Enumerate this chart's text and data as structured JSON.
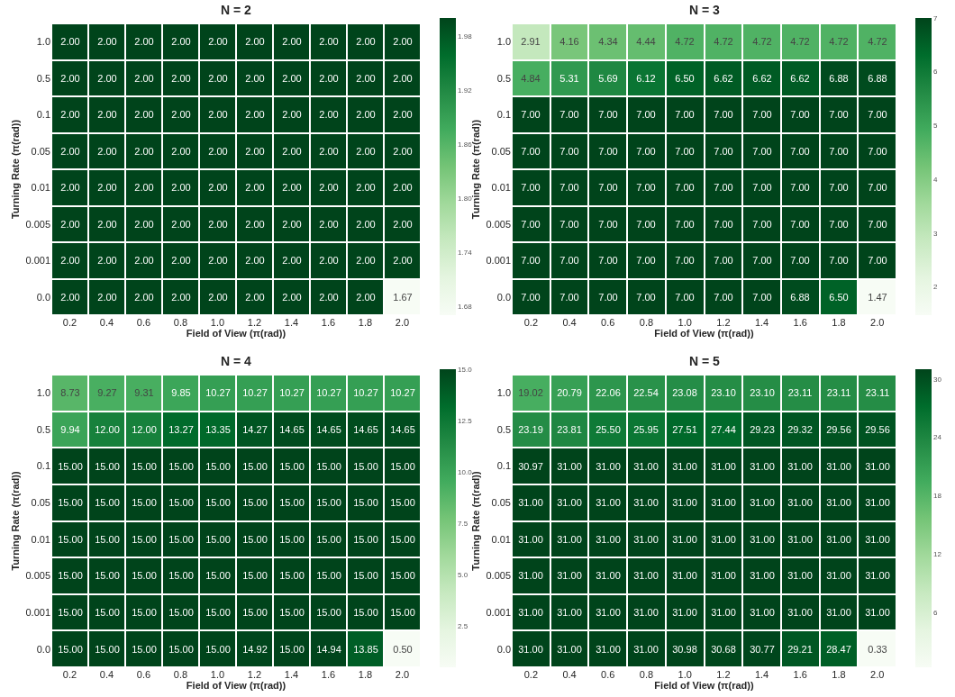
{
  "chart_data": [
    {
      "type": "heatmap",
      "title": "N = 2",
      "xlabel": "Field of View (π(rad))",
      "ylabel": "Turning Rate (π(rad))",
      "categories": [
        "0.2",
        "0.4",
        "0.6",
        "0.8",
        "1.0",
        "1.2",
        "1.4",
        "1.6",
        "1.8",
        "2.0"
      ],
      "y_categories": [
        "1.0",
        "0.5",
        "0.1",
        "0.05",
        "0.01",
        "0.005",
        "0.001",
        "0.0"
      ],
      "cells": [
        [
          2.0,
          2.0,
          2.0,
          2.0,
          2.0,
          2.0,
          2.0,
          2.0,
          2.0,
          2.0
        ],
        [
          2.0,
          2.0,
          2.0,
          2.0,
          2.0,
          2.0,
          2.0,
          2.0,
          2.0,
          2.0
        ],
        [
          2.0,
          2.0,
          2.0,
          2.0,
          2.0,
          2.0,
          2.0,
          2.0,
          2.0,
          2.0
        ],
        [
          2.0,
          2.0,
          2.0,
          2.0,
          2.0,
          2.0,
          2.0,
          2.0,
          2.0,
          2.0
        ],
        [
          2.0,
          2.0,
          2.0,
          2.0,
          2.0,
          2.0,
          2.0,
          2.0,
          2.0,
          2.0
        ],
        [
          2.0,
          2.0,
          2.0,
          2.0,
          2.0,
          2.0,
          2.0,
          2.0,
          2.0,
          2.0
        ],
        [
          2.0,
          2.0,
          2.0,
          2.0,
          2.0,
          2.0,
          2.0,
          2.0,
          2.0,
          2.0
        ],
        [
          2.0,
          2.0,
          2.0,
          2.0,
          2.0,
          2.0,
          2.0,
          2.0,
          2.0,
          1.67
        ]
      ],
      "cell_labels": [
        [
          "2.00",
          "2.00",
          "2.00",
          "2.00",
          "2.00",
          "2.00",
          "2.00",
          "2.00",
          "2.00",
          "2.00"
        ],
        [
          "2.00",
          "2.00",
          "2.00",
          "2.00",
          "2.00",
          "2.00",
          "2.00",
          "2.00",
          "2.00",
          "2.00"
        ],
        [
          "2.00",
          "2.00",
          "2.00",
          "2.00",
          "2.00",
          "2.00",
          "2.00",
          "2.00",
          "2.00",
          "2.00"
        ],
        [
          "2.00",
          "2.00",
          "2.00",
          "2.00",
          "2.00",
          "2.00",
          "2.00",
          "2.00",
          "2.00",
          "2.00"
        ],
        [
          "2.00",
          "2.00",
          "2.00",
          "2.00",
          "2.00",
          "2.00",
          "2.00",
          "2.00",
          "2.00",
          "2.00"
        ],
        [
          "2.00",
          "2.00",
          "2.00",
          "2.00",
          "2.00",
          "2.00",
          "2.00",
          "2.00",
          "2.00",
          "2.00"
        ],
        [
          "2.00",
          "2.00",
          "2.00",
          "2.00",
          "2.00",
          "2.00",
          "2.00",
          "2.00",
          "2.00",
          "2.00"
        ],
        [
          "2.00",
          "2.00",
          "2.00",
          "2.00",
          "2.00",
          "2.00",
          "2.00",
          "2.00",
          "2.00",
          "1.67"
        ]
      ],
      "clim": [
        1.67,
        2.0
      ],
      "cticks": [
        1.68,
        1.74,
        {
          "value": 1.8,
          "label": "1.80"
        },
        1.86,
        1.92,
        1.98
      ]
    },
    {
      "type": "heatmap",
      "title": "N = 3",
      "xlabel": "Field of View (π(rad))",
      "ylabel": "Turning Rate (π(rad))",
      "categories": [
        "0.2",
        "0.4",
        "0.6",
        "0.8",
        "1.0",
        "1.2",
        "1.4",
        "1.6",
        "1.8",
        "2.0"
      ],
      "y_categories": [
        "1.0",
        "0.5",
        "0.1",
        "0.05",
        "0.01",
        "0.005",
        "0.001",
        "0.0"
      ],
      "cells": [
        [
          2.91,
          4.16,
          4.34,
          4.44,
          4.72,
          4.72,
          4.72,
          4.72,
          4.72,
          4.72
        ],
        [
          4.84,
          5.31,
          5.69,
          6.12,
          6.5,
          6.62,
          6.62,
          6.62,
          6.88,
          6.88
        ],
        [
          7.0,
          7.0,
          7.0,
          7.0,
          7.0,
          7.0,
          7.0,
          7.0,
          7.0,
          7.0
        ],
        [
          7.0,
          7.0,
          7.0,
          7.0,
          7.0,
          7.0,
          7.0,
          7.0,
          7.0,
          7.0
        ],
        [
          7.0,
          7.0,
          7.0,
          7.0,
          7.0,
          7.0,
          7.0,
          7.0,
          7.0,
          7.0
        ],
        [
          7.0,
          7.0,
          7.0,
          7.0,
          7.0,
          7.0,
          7.0,
          7.0,
          7.0,
          7.0
        ],
        [
          7.0,
          7.0,
          7.0,
          7.0,
          7.0,
          7.0,
          7.0,
          7.0,
          7.0,
          7.0
        ],
        [
          7.0,
          7.0,
          7.0,
          7.0,
          7.0,
          7.0,
          7.0,
          6.88,
          6.5,
          1.47
        ]
      ],
      "cell_labels": [
        [
          "2.91",
          "4.16",
          "4.34",
          "4.44",
          "4.72",
          "4.72",
          "4.72",
          "4.72",
          "4.72",
          "4.72"
        ],
        [
          "4.84",
          "5.31",
          "5.69",
          "6.12",
          "6.50",
          "6.62",
          "6.62",
          "6.62",
          "6.88",
          "6.88"
        ],
        [
          "7.00",
          "7.00",
          "7.00",
          "7.00",
          "7.00",
          "7.00",
          "7.00",
          "7.00",
          "7.00",
          "7.00"
        ],
        [
          "7.00",
          "7.00",
          "7.00",
          "7.00",
          "7.00",
          "7.00",
          "7.00",
          "7.00",
          "7.00",
          "7.00"
        ],
        [
          "7.00",
          "7.00",
          "7.00",
          "7.00",
          "7.00",
          "7.00",
          "7.00",
          "7.00",
          "7.00",
          "7.00"
        ],
        [
          "7.00",
          "7.00",
          "7.00",
          "7.00",
          "7.00",
          "7.00",
          "7.00",
          "7.00",
          "7.00",
          "7.00"
        ],
        [
          "7.00",
          "7.00",
          "7.00",
          "7.00",
          "7.00",
          "7.00",
          "7.00",
          "7.00",
          "7.00",
          "7.00"
        ],
        [
          "7.00",
          "7.00",
          "7.00",
          "7.00",
          "7.00",
          "7.00",
          "7.00",
          "6.88",
          "6.50",
          "1.47"
        ]
      ],
      "clim": [
        1.47,
        7.0
      ],
      "cticks": [
        2,
        3,
        4,
        5,
        6,
        7
      ]
    },
    {
      "type": "heatmap",
      "title": "N = 4",
      "xlabel": "Field of View (π(rad))",
      "ylabel": "Turning Rate (π(rad))",
      "categories": [
        "0.2",
        "0.4",
        "0.6",
        "0.8",
        "1.0",
        "1.2",
        "1.4",
        "1.6",
        "1.8",
        "2.0"
      ],
      "y_categories": [
        "1.0",
        "0.5",
        "0.1",
        "0.05",
        "0.01",
        "0.005",
        "0.001",
        "0.0"
      ],
      "cells": [
        [
          8.73,
          9.27,
          9.31,
          9.85,
          10.27,
          10.27,
          10.27,
          10.27,
          10.27,
          10.27
        ],
        [
          9.94,
          12.0,
          12.0,
          13.27,
          13.35,
          14.27,
          14.65,
          14.65,
          14.65,
          14.65
        ],
        [
          15.0,
          15.0,
          15.0,
          15.0,
          15.0,
          15.0,
          15.0,
          15.0,
          15.0,
          15.0
        ],
        [
          15.0,
          15.0,
          15.0,
          15.0,
          15.0,
          15.0,
          15.0,
          15.0,
          15.0,
          15.0
        ],
        [
          15.0,
          15.0,
          15.0,
          15.0,
          15.0,
          15.0,
          15.0,
          15.0,
          15.0,
          15.0
        ],
        [
          15.0,
          15.0,
          15.0,
          15.0,
          15.0,
          15.0,
          15.0,
          15.0,
          15.0,
          15.0
        ],
        [
          15.0,
          15.0,
          15.0,
          15.0,
          15.0,
          15.0,
          15.0,
          15.0,
          15.0,
          15.0
        ],
        [
          15.0,
          15.0,
          15.0,
          15.0,
          15.0,
          14.92,
          15.0,
          14.94,
          13.85,
          0.5
        ]
      ],
      "cell_labels": [
        [
          "8.73",
          "9.27",
          "9.31",
          "9.85",
          "10.27",
          "10.27",
          "10.27",
          "10.27",
          "10.27",
          "10.27"
        ],
        [
          "9.94",
          "12.00",
          "12.00",
          "13.27",
          "13.35",
          "14.27",
          "14.65",
          "14.65",
          "14.65",
          "14.65"
        ],
        [
          "15.00",
          "15.00",
          "15.00",
          "15.00",
          "15.00",
          "15.00",
          "15.00",
          "15.00",
          "15.00",
          "15.00"
        ],
        [
          "15.00",
          "15.00",
          "15.00",
          "15.00",
          "15.00",
          "15.00",
          "15.00",
          "15.00",
          "15.00",
          "15.00"
        ],
        [
          "15.00",
          "15.00",
          "15.00",
          "15.00",
          "15.00",
          "15.00",
          "15.00",
          "15.00",
          "15.00",
          "15.00"
        ],
        [
          "15.00",
          "15.00",
          "15.00",
          "15.00",
          "15.00",
          "15.00",
          "15.00",
          "15.00",
          "15.00",
          "15.00"
        ],
        [
          "15.00",
          "15.00",
          "15.00",
          "15.00",
          "15.00",
          "15.00",
          "15.00",
          "15.00",
          "15.00",
          "15.00"
        ],
        [
          "15.00",
          "15.00",
          "15.00",
          "15.00",
          "15.00",
          "14.92",
          "15.00",
          "14.94",
          "13.85",
          "0.50"
        ]
      ],
      "clim": [
        0.5,
        15.0
      ],
      "cticks": [
        2.5,
        {
          "value": 5,
          "label": "5.0"
        },
        7.5,
        {
          "value": 10,
          "label": "10.0"
        },
        12.5,
        {
          "value": 15,
          "label": "15.0"
        }
      ]
    },
    {
      "type": "heatmap",
      "title": "N = 5",
      "xlabel": "Field of View (π(rad))",
      "ylabel": "Turning Rate (π(rad))",
      "categories": [
        "0.2",
        "0.4",
        "0.6",
        "0.8",
        "1.0",
        "1.2",
        "1.4",
        "1.6",
        "1.8",
        "2.0"
      ],
      "y_categories": [
        "1.0",
        "0.5",
        "0.1",
        "0.05",
        "0.01",
        "0.005",
        "0.001",
        "0.0"
      ],
      "cells": [
        [
          19.02,
          20.79,
          22.06,
          22.54,
          23.08,
          23.1,
          23.1,
          23.11,
          23.11,
          23.11
        ],
        [
          23.19,
          23.81,
          25.5,
          25.95,
          27.51,
          27.44,
          29.23,
          29.32,
          29.56,
          29.56
        ],
        [
          30.97,
          31.0,
          31.0,
          31.0,
          31.0,
          31.0,
          31.0,
          31.0,
          31.0,
          31.0
        ],
        [
          31.0,
          31.0,
          31.0,
          31.0,
          31.0,
          31.0,
          31.0,
          31.0,
          31.0,
          31.0
        ],
        [
          31.0,
          31.0,
          31.0,
          31.0,
          31.0,
          31.0,
          31.0,
          31.0,
          31.0,
          31.0
        ],
        [
          31.0,
          31.0,
          31.0,
          31.0,
          31.0,
          31.0,
          31.0,
          31.0,
          31.0,
          31.0
        ],
        [
          31.0,
          31.0,
          31.0,
          31.0,
          31.0,
          31.0,
          31.0,
          31.0,
          31.0,
          31.0
        ],
        [
          31.0,
          31.0,
          31.0,
          31.0,
          30.98,
          30.68,
          30.77,
          29.21,
          28.47,
          0.33
        ]
      ],
      "cell_labels": [
        [
          "19.02",
          "20.79",
          "22.06",
          "22.54",
          "23.08",
          "23.10",
          "23.10",
          "23.11",
          "23.11",
          "23.11"
        ],
        [
          "23.19",
          "23.81",
          "25.50",
          "25.95",
          "27.51",
          "27.44",
          "29.23",
          "29.32",
          "29.56",
          "29.56"
        ],
        [
          "30.97",
          "31.00",
          "31.00",
          "31.00",
          "31.00",
          "31.00",
          "31.00",
          "31.00",
          "31.00",
          "31.00"
        ],
        [
          "31.00",
          "31.00",
          "31.00",
          "31.00",
          "31.00",
          "31.00",
          "31.00",
          "31.00",
          "31.00",
          "31.00"
        ],
        [
          "31.00",
          "31.00",
          "31.00",
          "31.00",
          "31.00",
          "31.00",
          "31.00",
          "31.00",
          "31.00",
          "31.00"
        ],
        [
          "31.00",
          "31.00",
          "31.00",
          "31.00",
          "31.00",
          "31.00",
          "31.00",
          "31.00",
          "31.00",
          "31.00"
        ],
        [
          "31.00",
          "31.00",
          "31.00",
          "31.00",
          "31.00",
          "31.00",
          "31.00",
          "31.00",
          "31.00",
          "31.00"
        ],
        [
          "31.00",
          "31.00",
          "31.00",
          "31.00",
          "30.98",
          "30.68",
          "30.77",
          "29.21",
          "28.47",
          "0.33"
        ]
      ],
      "clim": [
        0.33,
        31.0
      ],
      "cticks": [
        6,
        12,
        18,
        24,
        30
      ]
    }
  ]
}
